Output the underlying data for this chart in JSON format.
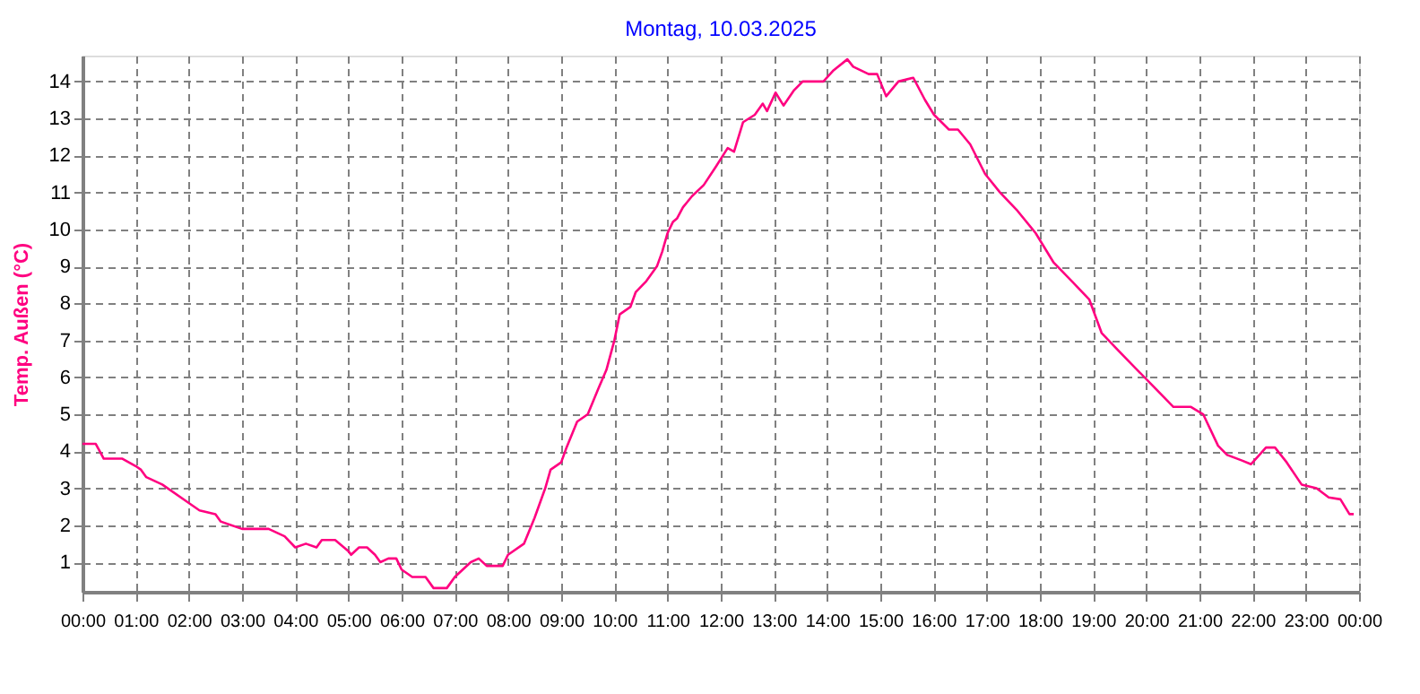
{
  "chart_data": {
    "type": "line",
    "title": "Montag, 10.03.2025",
    "ylabel": "Temp. Außen  (°C)",
    "x": [
      0.0,
      0.25,
      0.4,
      0.75,
      1.0,
      1.1,
      1.2,
      1.5,
      2.0,
      2.2,
      2.5,
      2.6,
      3.0,
      3.5,
      3.8,
      4.0,
      4.2,
      4.4,
      4.5,
      4.75,
      5.0,
      5.05,
      5.2,
      5.35,
      5.5,
      5.6,
      5.75,
      5.9,
      6.0,
      6.2,
      6.45,
      6.6,
      6.7,
      6.85,
      7.0,
      7.3,
      7.45,
      7.6,
      7.9,
      8.0,
      8.3,
      8.5,
      8.7,
      8.8,
      9.0,
      9.1,
      9.3,
      9.5,
      9.7,
      9.85,
      10.0,
      10.1,
      10.3,
      10.4,
      10.6,
      10.8,
      10.9,
      11.0,
      11.1,
      11.18,
      11.29,
      11.46,
      11.68,
      11.91,
      12.13,
      12.25,
      12.42,
      12.64,
      12.79,
      12.87,
      13.03,
      13.18,
      13.37,
      13.54,
      13.71,
      13.93,
      14.12,
      14.38,
      14.49,
      14.78,
      14.94,
      15.11,
      15.34,
      15.62,
      15.84,
      16.01,
      16.29,
      16.46,
      16.69,
      16.97,
      17.25,
      17.58,
      17.92,
      18.26,
      18.6,
      18.93,
      19.16,
      19.49,
      19.83,
      20.17,
      20.51,
      20.84,
      21.07,
      21.35,
      21.52,
      21.8,
      21.97,
      22.25,
      22.42,
      22.64,
      22.92,
      23.2,
      23.43,
      23.65,
      23.82,
      23.9
    ],
    "series": [
      {
        "color": "#ff0080",
        "values": [
          4.2,
          4.2,
          3.8,
          3.8,
          3.6,
          3.5,
          3.3,
          3.1,
          2.6,
          2.4,
          2.3,
          2.1,
          1.9,
          1.9,
          1.7,
          1.4,
          1.5,
          1.4,
          1.6,
          1.6,
          1.3,
          1.2,
          1.4,
          1.4,
          1.2,
          1.0,
          1.1,
          1.1,
          0.8,
          0.6,
          0.6,
          0.3,
          0.3,
          0.3,
          0.6,
          1.0,
          1.1,
          0.9,
          0.9,
          1.2,
          1.5,
          2.2,
          3.0,
          3.5,
          3.7,
          4.1,
          4.8,
          5.0,
          5.7,
          6.2,
          7.0,
          7.7,
          7.9,
          8.3,
          8.6,
          9.0,
          9.4,
          9.9,
          10.2,
          10.3,
          10.6,
          10.9,
          11.2,
          11.7,
          12.2,
          12.1,
          12.9,
          13.1,
          13.4,
          13.2,
          13.7,
          13.35,
          13.75,
          14.0,
          14.0,
          14.0,
          14.3,
          14.6,
          14.4,
          14.2,
          14.2,
          13.6,
          14.0,
          14.1,
          13.5,
          13.1,
          12.7,
          12.7,
          12.3,
          11.5,
          11.0,
          10.5,
          9.9,
          9.1,
          8.6,
          8.1,
          7.2,
          6.7,
          6.2,
          5.7,
          5.2,
          5.2,
          5.0,
          4.15,
          3.9,
          3.75,
          3.65,
          4.1,
          4.1,
          3.7,
          3.1,
          3.0,
          2.75,
          2.7,
          2.3,
          2.3
        ]
      }
    ],
    "xlim": [
      0,
      24
    ],
    "xticks": [
      {
        "value": 0,
        "label": "00:00"
      },
      {
        "value": 1,
        "label": "01:00"
      },
      {
        "value": 2,
        "label": "02:00"
      },
      {
        "value": 3,
        "label": "03:00"
      },
      {
        "value": 4,
        "label": "04:00"
      },
      {
        "value": 5,
        "label": "05:00"
      },
      {
        "value": 6,
        "label": "06:00"
      },
      {
        "value": 7,
        "label": "07:00"
      },
      {
        "value": 8,
        "label": "08:00"
      },
      {
        "value": 9,
        "label": "09:00"
      },
      {
        "value": 10,
        "label": "10:00"
      },
      {
        "value": 11,
        "label": "11:00"
      },
      {
        "value": 12,
        "label": "12:00"
      },
      {
        "value": 13,
        "label": "13:00"
      },
      {
        "value": 14,
        "label": "14:00"
      },
      {
        "value": 15,
        "label": "15:00"
      },
      {
        "value": 16,
        "label": "16:00"
      },
      {
        "value": 17,
        "label": "17:00"
      },
      {
        "value": 18,
        "label": "18:00"
      },
      {
        "value": 19,
        "label": "19:00"
      },
      {
        "value": 20,
        "label": "20:00"
      },
      {
        "value": 21,
        "label": "21:00"
      },
      {
        "value": 22,
        "label": "22:00"
      },
      {
        "value": 23,
        "label": "23:00"
      },
      {
        "value": 24,
        "label": "00:00"
      }
    ],
    "ylim": [
      0.2,
      14.7
    ],
    "yticks": [
      1,
      2,
      3,
      4,
      5,
      6,
      7,
      8,
      9,
      10,
      11,
      12,
      13,
      14
    ],
    "grid": true,
    "legend": false,
    "marker": "none",
    "line_style": "solid"
  }
}
